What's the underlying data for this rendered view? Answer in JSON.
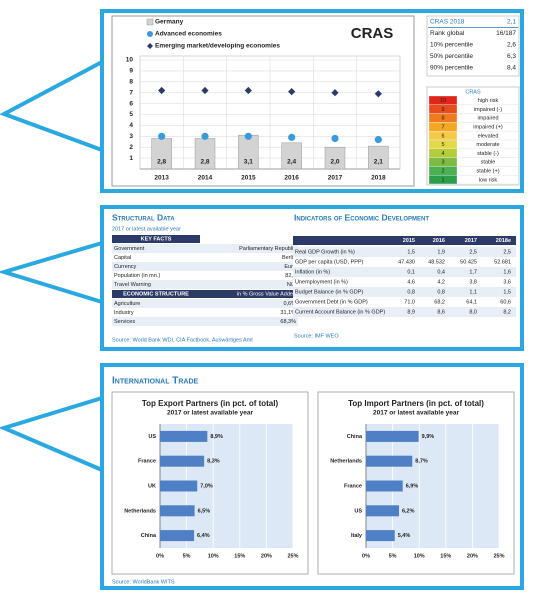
{
  "chart_data": [
    {
      "type": "bar",
      "title": "CRAS",
      "categories": [
        "2013",
        "2014",
        "2015",
        "2016",
        "2017",
        "2018"
      ],
      "series": [
        {
          "name": "Germany",
          "color": "#d3d3d3",
          "mark": "bar",
          "values": [
            2.8,
            2.8,
            3.1,
            2.4,
            2.0,
            2.1
          ],
          "value_labels": [
            "2,8",
            "2,8",
            "3,1",
            "2,4",
            "2,0",
            "2,1"
          ]
        },
        {
          "name": "Advanced economies",
          "color": "#3a9bdc",
          "mark": "circle",
          "values": [
            3.0,
            3.0,
            3.0,
            2.9,
            2.8,
            2.7
          ]
        },
        {
          "name": "Emerging market/developing economies",
          "color": "#2b3a67",
          "mark": "diamond",
          "values": [
            7.2,
            7.2,
            7.2,
            7.1,
            7.0,
            6.9
          ]
        }
      ],
      "ylim": [
        0,
        10
      ],
      "yticks": [
        1,
        2,
        3,
        4,
        5,
        6,
        7,
        8,
        9,
        10
      ],
      "grid": true
    },
    {
      "type": "hbar",
      "title": "Top Export Partners (in pct. of total)",
      "subtitle": "2017 or latest available year",
      "categories": [
        "US",
        "France",
        "UK",
        "Netherlands",
        "China"
      ],
      "values": [
        8.9,
        8.3,
        7.0,
        6.5,
        6.4
      ],
      "value_labels": [
        "8,9%",
        "8,3%",
        "7,0%",
        "6,5%",
        "6,4%"
      ],
      "color": "#4f7fc4",
      "xlim": [
        0,
        25
      ],
      "xticks": [
        {
          "value": 0,
          "label": "0%"
        },
        {
          "value": 5,
          "label": "5%"
        },
        {
          "value": 10,
          "label": "10%"
        },
        {
          "value": 15,
          "label": "15%"
        },
        {
          "value": 20,
          "label": "20%"
        },
        {
          "value": 25,
          "label": "25%"
        }
      ],
      "grid": true
    },
    {
      "type": "hbar",
      "title": "Top Import Partners (in pct. of total)",
      "subtitle": "2017 or latest available year",
      "categories": [
        "China",
        "Netherlands",
        "France",
        "US",
        "Italy"
      ],
      "values": [
        9.9,
        8.7,
        6.9,
        6.2,
        5.4
      ],
      "value_labels": [
        "9,9%",
        "8,7%",
        "6,9%",
        "6,2%",
        "5,4%"
      ],
      "color": "#4f7fc4",
      "xlim": [
        0,
        25
      ],
      "xticks": [
        {
          "value": 0,
          "label": "0%"
        },
        {
          "value": 5,
          "label": "5%"
        },
        {
          "value": 10,
          "label": "10%"
        },
        {
          "value": 15,
          "label": "15%"
        },
        {
          "value": 20,
          "label": "20%"
        },
        {
          "value": 25,
          "label": "25%"
        }
      ],
      "grid": true
    }
  ],
  "cras_summary": {
    "rows": [
      [
        "CRAS 2018",
        "2,1"
      ],
      [
        "Rank global",
        "16/187"
      ],
      [
        "10% percentile",
        "2,6"
      ],
      [
        "50% percentile",
        "6,3"
      ],
      [
        "90% percentile",
        "8,4"
      ]
    ]
  },
  "risk_scale": {
    "title": "CRAS",
    "levels": [
      {
        "score": "10",
        "label": "high risk",
        "color": "#e0251b"
      },
      {
        "score": "9",
        "label": "impaired (-)",
        "color": "#e84c1e"
      },
      {
        "score": "8",
        "label": "impaired",
        "color": "#f07a20"
      },
      {
        "score": "7",
        "label": "impaired (+)",
        "color": "#f5a623"
      },
      {
        "score": "6",
        "label": "elevated",
        "color": "#f7c948"
      },
      {
        "score": "5",
        "label": "moderate",
        "color": "#e3d84a"
      },
      {
        "score": "4",
        "label": "stable (-)",
        "color": "#b5cc3a"
      },
      {
        "score": "3",
        "label": "stable",
        "color": "#7dbb42"
      },
      {
        "score": "2",
        "label": "stable (+)",
        "color": "#4caf50"
      },
      {
        "score": "1",
        "label": "low risk",
        "color": "#2e9e48"
      }
    ]
  },
  "structural_data": {
    "title": "Structural Data",
    "subtitle": "2017 or latest available year",
    "key_facts_header": "KEY FACTS",
    "key_facts": [
      [
        "Government",
        "Parliamentary Republic"
      ],
      [
        "Capital",
        "Berlin"
      ],
      [
        "Currency",
        "Euro"
      ],
      [
        "Population (in mn.)",
        "82,7"
      ],
      [
        "Travel Warning",
        "N/A"
      ]
    ],
    "economic_structure_header": [
      "ECONOMIC STRUCTURE",
      "in % Gross Value Added"
    ],
    "economic_structure": [
      [
        "Agriculture",
        "0,6%"
      ],
      [
        "Industry",
        "31,1%"
      ],
      [
        "Services",
        "68,3%"
      ]
    ],
    "source": "Source: World Bank WDI, CIA Factbook, Auswärtiges Amt"
  },
  "indicators": {
    "title": "Indicators of Economic Development",
    "columns": [
      "2015",
      "2016",
      "2017",
      "2018e"
    ],
    "rows": [
      {
        "label": "Real GDP Growth (in %)",
        "values": [
          "1,5",
          "1,9",
          "2,5",
          "2,5"
        ]
      },
      {
        "label": "GDP per capita (USD, PPP)",
        "values": [
          "47.430",
          "48.532",
          "50.425",
          "52.681"
        ]
      },
      {
        "label": "Inflation (in %)",
        "values": [
          "0,1",
          "0,4",
          "1,7",
          "1,6"
        ]
      },
      {
        "label": "Unemployment (in %)",
        "values": [
          "4,6",
          "4,2",
          "3,8",
          "3,6"
        ]
      },
      {
        "label": "Budget Balance (in % GDP)",
        "values": [
          "0,8",
          "0,8",
          "1,1",
          "1,5"
        ]
      },
      {
        "label": "Government Debt (in % GDP)",
        "values": [
          "71,0",
          "68,2",
          "64,1",
          "60,6"
        ]
      },
      {
        "label": "Current Account Balance (in % GDP)",
        "values": [
          "8,9",
          "8,6",
          "8,0",
          "8,2"
        ]
      }
    ],
    "source": "Source: IMF WEO"
  },
  "trade": {
    "title": "International Trade",
    "source": "Source: WorldBank WITS"
  }
}
